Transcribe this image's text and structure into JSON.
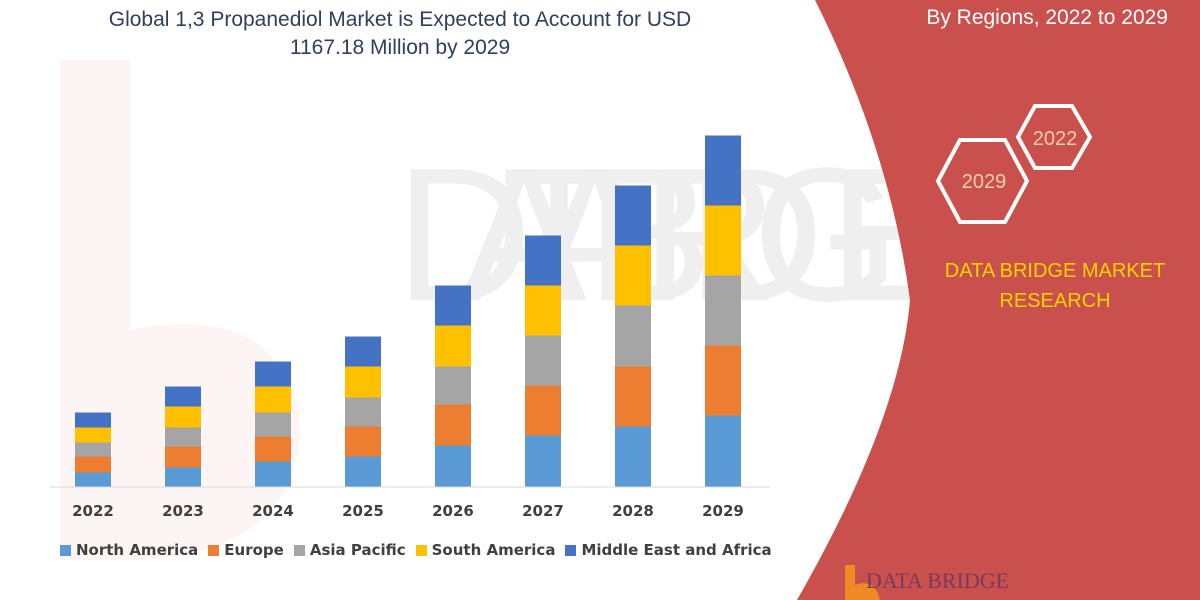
{
  "header": {
    "title_line1": "Global 1,3 Propanediol Market is Expected to Account for USD",
    "title_line2": "1167.18 Million by 2029",
    "subtitle": "By Regions, 2022 to 2029"
  },
  "side_panel": {
    "hex_labels": [
      "2022",
      "2029"
    ],
    "brand_line1": "DATA BRIDGE MARKET",
    "brand_line2": "RESEARCH",
    "logo_text": "DATA BRIDGE",
    "panel_color": "#c9504d",
    "brand_color": "#ffd200"
  },
  "chart_data": {
    "type": "bar",
    "stacked": true,
    "title": "Global 1,3 Propanediol Market is Expected to Account for USD 1167.18 Million by 2029",
    "xlabel": "",
    "ylabel": "",
    "y_axis_shown": false,
    "values_note_unit": "relative (no axis printed)",
    "ylim": [
      0,
      360
    ],
    "grid": false,
    "legend_position": "bottom",
    "categories": [
      "2022",
      "2023",
      "2024",
      "2025",
      "2026",
      "2027",
      "2028",
      "2029"
    ],
    "series": [
      {
        "name": "North America",
        "color": "#5b9bd5",
        "values": [
          14,
          19,
          25,
          30,
          41,
          51,
          60,
          71
        ]
      },
      {
        "name": "Europe",
        "color": "#ed7d31",
        "values": [
          16,
          21,
          25,
          30,
          41,
          50,
          60,
          70
        ]
      },
      {
        "name": "Asia Pacific",
        "color": "#a5a5a5",
        "values": [
          14,
          19,
          24,
          29,
          38,
          50,
          61,
          70
        ]
      },
      {
        "name": "South America",
        "color": "#ffc000",
        "values": [
          15,
          21,
          26,
          31,
          41,
          50,
          60,
          70
        ]
      },
      {
        "name": "Middle East and Africa",
        "color": "#4472c4",
        "values": [
          15,
          20,
          25,
          30,
          40,
          50,
          60,
          70
        ]
      }
    ]
  }
}
